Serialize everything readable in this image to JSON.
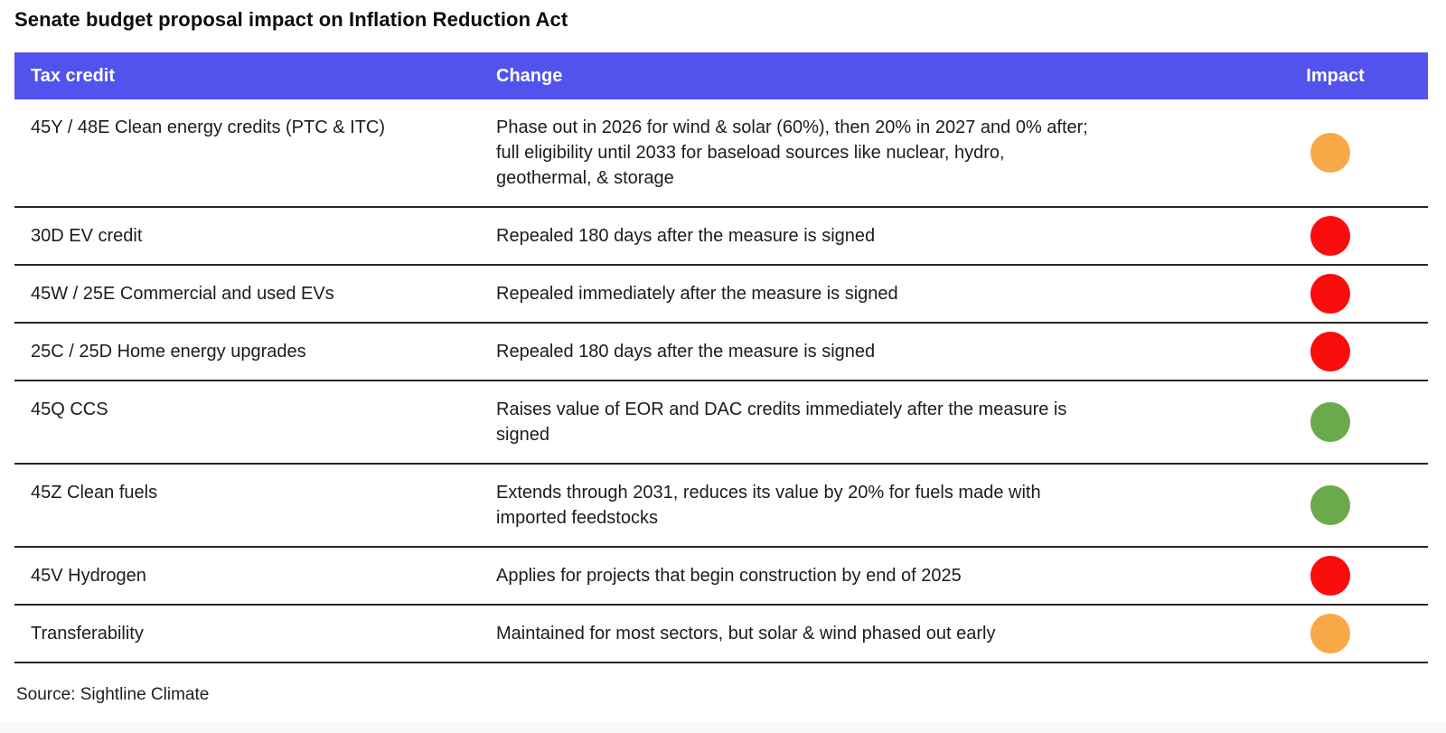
{
  "title": "Senate budget proposal impact on Inflation Reduction Act",
  "source": "Source: Sightline Climate",
  "colors": {
    "header_bg": "#5253ED",
    "header_text": "#ffffff",
    "divider": "#262626",
    "body_text": "#1c1c1c",
    "impact_red": "#F90D0D",
    "impact_green": "#6BAA4C",
    "impact_orange": "#F9A847",
    "bottom_strip": "#F8F9FB"
  },
  "chart_data": {
    "type": "table",
    "title": "Senate budget proposal impact on Inflation Reduction Act",
    "columns": [
      "Tax credit",
      "Change",
      "Impact"
    ],
    "rows": [
      {
        "tax_credit": "45Y / 48E Clean energy credits (PTC & ITC)",
        "change_lines": [
          "Phase out in 2026 for wind & solar (60%), then 20% in 2027 and 0% after;",
          "full eligibility until 2033 for baseload sources like nuclear, hydro,",
          "geothermal, & storage"
        ],
        "impact": "orange",
        "impact_color": "#F9A847"
      },
      {
        "tax_credit": "30D EV credit",
        "change_lines": [
          "Repealed 180 days after the measure is signed"
        ],
        "impact": "red",
        "impact_color": "#F90D0D"
      },
      {
        "tax_credit": "45W / 25E Commercial and used EVs",
        "change_lines": [
          "Repealed immediately after the measure is signed"
        ],
        "impact": "red",
        "impact_color": "#F90D0D"
      },
      {
        "tax_credit": "25C / 25D Home energy upgrades",
        "change_lines": [
          "Repealed 180 days after the measure is signed"
        ],
        "impact": "red",
        "impact_color": "#F90D0D"
      },
      {
        "tax_credit": "45Q CCS",
        "change_lines": [
          "Raises value of EOR and DAC credits immediately after the measure is",
          "signed"
        ],
        "impact": "green",
        "impact_color": "#6BAA4C"
      },
      {
        "tax_credit": "45Z Clean fuels",
        "change_lines": [
          "Extends through 2031, reduces its value by 20% for fuels made with",
          "imported feedstocks"
        ],
        "impact": "green",
        "impact_color": "#6BAA4C"
      },
      {
        "tax_credit": "45V Hydrogen",
        "change_lines": [
          "Applies for projects that begin construction by end of 2025"
        ],
        "impact": "red",
        "impact_color": "#F90D0D"
      },
      {
        "tax_credit": "Transferability",
        "change_lines": [
          "Maintained for most sectors, but solar & wind phased out early"
        ],
        "impact": "orange",
        "impact_color": "#F9A847"
      }
    ]
  }
}
